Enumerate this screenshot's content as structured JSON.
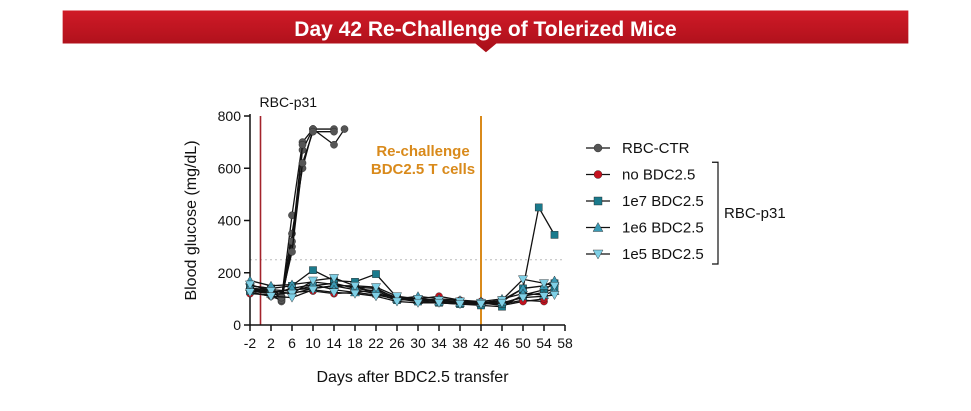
{
  "banner": {
    "title": "Day 42 Re-Challenge of Tolerized Mice",
    "color": "#c4121f"
  },
  "chart_data": {
    "type": "line",
    "xlabel": "Days after BDC2.5 transfer",
    "ylabel": "Blood glucose (mg/dL)",
    "ylim": [
      0,
      800
    ],
    "yticks": [
      0,
      200,
      400,
      600,
      800
    ],
    "xticks": [
      -2,
      2,
      6,
      10,
      14,
      18,
      22,
      26,
      30,
      34,
      38,
      42,
      46,
      50,
      54,
      58
    ],
    "xtick_labels": [
      "-2",
      "2",
      "6",
      "10",
      "14",
      "18",
      "22",
      "26",
      "30",
      "34",
      "38",
      "42",
      "46",
      "50",
      "54",
      "58"
    ],
    "threshold": 250,
    "annotations": {
      "rbc_line": {
        "x": 0,
        "label": "RBC-p31",
        "color": "#a3232b"
      },
      "rechallenge_line": {
        "x": 42,
        "label_line1": "Re-challenge",
        "label_line2": "BDC2.5 T cells",
        "color": "#d98a1b"
      }
    },
    "legend": {
      "items": [
        {
          "label": "RBC-CTR",
          "marker": "circle",
          "color": "#555555"
        },
        {
          "label": "no BDC2.5",
          "marker": "circle",
          "color": "#c4121f"
        },
        {
          "label": "1e7 BDC2.5",
          "marker": "square",
          "color": "#1b7a8c"
        },
        {
          "label": "1e6 BDC2.5",
          "marker": "triangle",
          "color": "#3a9ab5"
        },
        {
          "label": "1e5 BDC2.5",
          "marker": "triangle-down",
          "color": "#7fd0e6"
        }
      ],
      "bracket_label": "RBC-p31"
    },
    "series": [
      {
        "name": "RBC-CTR mouse 1",
        "group": "RBC-CTR",
        "x": [
          -2,
          2,
          4,
          6,
          8,
          10,
          14
        ],
        "y": [
          140,
          135,
          100,
          420,
          700,
          750,
          750
        ]
      },
      {
        "name": "RBC-CTR mouse 2",
        "group": "RBC-CTR",
        "x": [
          -2,
          2,
          4,
          6,
          8,
          10,
          14,
          16
        ],
        "y": [
          130,
          120,
          90,
          300,
          670,
          750,
          690,
          750
        ]
      },
      {
        "name": "RBC-CTR mouse 3",
        "group": "RBC-CTR",
        "x": [
          -2,
          2,
          4,
          6,
          8,
          10
        ],
        "y": [
          150,
          140,
          110,
          350,
          600,
          750
        ]
      },
      {
        "name": "RBC-CTR mouse 4",
        "group": "RBC-CTR",
        "x": [
          -2,
          2,
          4,
          6,
          8
        ],
        "y": [
          125,
          110,
          95,
          320,
          690
        ]
      },
      {
        "name": "RBC-CTR mouse 5",
        "group": "RBC-CTR",
        "x": [
          -2,
          2,
          4,
          6,
          8,
          10,
          14
        ],
        "y": [
          135,
          125,
          105,
          280,
          620,
          740,
          740
        ]
      },
      {
        "name": "no BDC2.5 mouse 1",
        "group": "no BDC2.5",
        "x": [
          -2,
          2,
          6,
          10,
          14,
          18,
          22,
          26,
          30,
          34,
          38,
          42,
          46,
          50,
          54
        ],
        "y": [
          135,
          130,
          120,
          140,
          150,
          135,
          120,
          105,
          100,
          110,
          95,
          90,
          80,
          95,
          90
        ]
      },
      {
        "name": "no BDC2.5 mouse 2",
        "group": "no BDC2.5",
        "x": [
          -2,
          2,
          6,
          10,
          14,
          18,
          22,
          26,
          30,
          34,
          38,
          42,
          46,
          50,
          54
        ],
        "y": [
          120,
          115,
          125,
          130,
          120,
          125,
          115,
          100,
          95,
          90,
          85,
          85,
          75,
          90,
          100
        ]
      },
      {
        "name": "1e7 BDC2.5 mouse 1",
        "group": "1e7 BDC2.5",
        "x": [
          -2,
          2,
          6,
          10,
          14,
          18,
          22,
          26,
          30,
          34,
          38,
          42,
          46,
          50,
          53,
          56
        ],
        "y": [
          150,
          140,
          150,
          210,
          170,
          165,
          195,
          105,
          95,
          90,
          85,
          80,
          95,
          140,
          450,
          345
        ]
      },
      {
        "name": "1e7 BDC2.5 mouse 2",
        "group": "1e7 BDC2.5",
        "x": [
          -2,
          2,
          6,
          10,
          14,
          18,
          22,
          26,
          30,
          34,
          38,
          42,
          46,
          50,
          54,
          56
        ],
        "y": [
          140,
          135,
          130,
          150,
          160,
          140,
          130,
          100,
          90,
          85,
          80,
          75,
          70,
          115,
          135,
          160
        ]
      },
      {
        "name": "1e7 BDC2.5 mouse 3",
        "group": "1e7 BDC2.5",
        "x": [
          -2,
          2,
          6,
          10,
          14,
          18,
          22,
          26,
          30,
          34,
          38,
          42,
          46,
          50,
          54,
          56
        ],
        "y": [
          130,
          125,
          135,
          140,
          150,
          150,
          120,
          95,
          100,
          95,
          90,
          85,
          80,
          110,
          125,
          140
        ]
      },
      {
        "name": "1e6 BDC2.5 mouse 1",
        "group": "1e6 BDC2.5",
        "x": [
          -2,
          2,
          6,
          10,
          14,
          18,
          22,
          26,
          30,
          34,
          38,
          42,
          46,
          50,
          54,
          56
        ],
        "y": [
          170,
          150,
          155,
          165,
          155,
          145,
          140,
          100,
          110,
          100,
          95,
          85,
          90,
          140,
          150,
          170
        ]
      },
      {
        "name": "1e6 BDC2.5 mouse 2",
        "group": "1e6 BDC2.5",
        "x": [
          -2,
          2,
          6,
          10,
          14,
          18,
          22,
          26,
          30,
          34,
          38,
          42,
          46,
          50,
          54,
          56
        ],
        "y": [
          145,
          120,
          140,
          155,
          135,
          125,
          135,
          105,
          95,
          90,
          85,
          90,
          100,
          120,
          115,
          130
        ]
      },
      {
        "name": "1e5 BDC2.5 mouse 1",
        "group": "1e5 BDC2.5",
        "x": [
          -2,
          2,
          6,
          10,
          14,
          18,
          22,
          26,
          30,
          34,
          38,
          42,
          46,
          50,
          54,
          56
        ],
        "y": [
          155,
          130,
          120,
          170,
          180,
          150,
          145,
          110,
          100,
          95,
          90,
          85,
          95,
          175,
          160,
          150
        ]
      },
      {
        "name": "1e5 BDC2.5 mouse 2",
        "group": "1e5 BDC2.5",
        "x": [
          -2,
          2,
          6,
          10,
          14,
          18,
          22,
          26,
          30,
          34,
          38,
          42,
          46,
          50,
          54,
          56
        ],
        "y": [
          125,
          110,
          105,
          135,
          125,
          120,
          110,
          90,
          85,
          85,
          80,
          80,
          85,
          105,
          110,
          115
        ]
      }
    ]
  }
}
